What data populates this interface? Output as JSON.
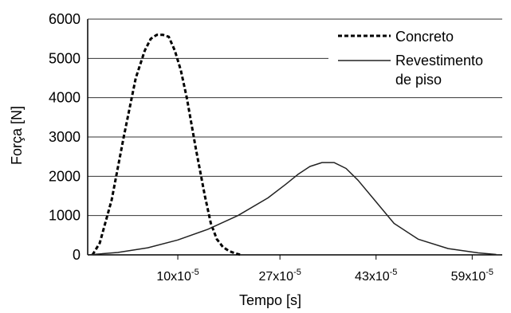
{
  "chart_data": {
    "type": "line",
    "xlabel": "Tempo [s]",
    "ylabel": "Força [N]",
    "ylim": [
      0,
      6000
    ],
    "xlim": [
      -5,
      64
    ],
    "grid": "horizontal",
    "legend_position": "top-right",
    "y_ticks": [
      0,
      1000,
      2000,
      3000,
      4000,
      5000,
      6000
    ],
    "x_ticks": [
      {
        "value": 10,
        "label": "10x10",
        "exp": "-5"
      },
      {
        "value": 27,
        "label": "27x10",
        "exp": "-5"
      },
      {
        "value": 43,
        "label": "43x10",
        "exp": "-5"
      },
      {
        "value": 59,
        "label": "59x10",
        "exp": "-5"
      }
    ],
    "series": [
      {
        "name": "Concreto",
        "style": "dashed",
        "color": "#000000",
        "x": [
          -4.2,
          -3,
          -1,
          1,
          3,
          4.5,
          5.5,
          6.5,
          7.5,
          8.5,
          9.5,
          10.5,
          11.5,
          13,
          14.5,
          15.5,
          16.5,
          17.5,
          18.5,
          19.5,
          20.5
        ],
        "y": [
          0,
          300,
          1400,
          3000,
          4500,
          5200,
          5500,
          5600,
          5600,
          5550,
          5200,
          4700,
          4000,
          2700,
          1500,
          800,
          400,
          200,
          100,
          40,
          0
        ]
      },
      {
        "name": "Revestimento de piso",
        "style": "solid",
        "color": "#222222",
        "x": [
          -5,
          0,
          5,
          10,
          15,
          20,
          25,
          28,
          30,
          32,
          34,
          36,
          38,
          40,
          43,
          46,
          50,
          55,
          60,
          63
        ],
        "y": [
          0,
          60,
          180,
          380,
          650,
          1000,
          1450,
          1800,
          2050,
          2250,
          2350,
          2350,
          2200,
          1900,
          1350,
          800,
          400,
          160,
          50,
          10
        ]
      }
    ]
  }
}
